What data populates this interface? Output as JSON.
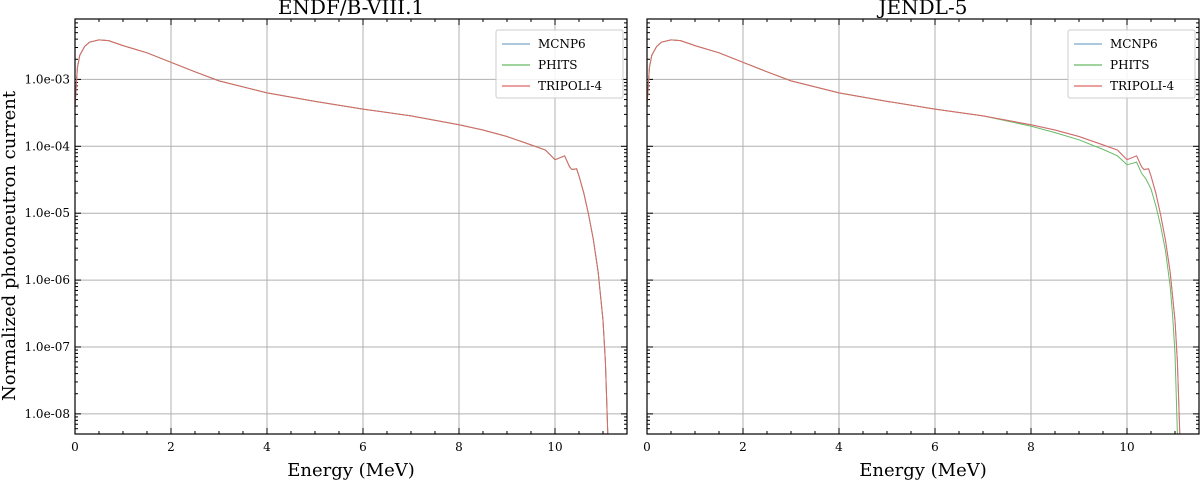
{
  "figure": {
    "ylabel": "Normalized photoneutron current"
  },
  "chart_data": [
    {
      "type": "line",
      "title": "ENDF/B-VIII.1",
      "xlabel": "Energy (MeV)",
      "ylabel": "Normalized photoneutron current",
      "xlim": [
        0,
        11.5
      ],
      "ylim": [
        5e-09,
        0.008
      ],
      "yscale": "log",
      "grid": true,
      "legend": "top-right",
      "x_ticks": [
        0,
        2,
        4,
        6,
        8,
        10
      ],
      "y_ticks": [
        1e-08,
        1e-07,
        1e-06,
        1e-05,
        0.0001,
        0.001
      ],
      "y_tick_labels": [
        "1.0e-08",
        "1.0e-07",
        "1.0e-06",
        "1.0e-05",
        "1.0e-04",
        "1.0e-03"
      ],
      "series": [
        {
          "name": "MCNP6",
          "color": "#7aa6c9",
          "x": [
            0.0,
            0.05,
            0.1,
            0.2,
            0.3,
            0.5,
            0.7,
            1.0,
            1.5,
            2.0,
            2.5,
            3.0,
            4.0,
            5.0,
            6.0,
            7.0,
            8.0,
            8.5,
            9.0,
            9.5,
            9.8,
            10.0,
            10.05,
            10.2,
            10.3,
            10.35,
            10.45,
            10.5,
            10.6,
            10.7,
            10.8,
            10.9,
            11.0,
            11.05,
            11.1
          ],
          "y": [
            0.0004,
            0.0015,
            0.0023,
            0.0031,
            0.0036,
            0.0039,
            0.0038,
            0.0032,
            0.0025,
            0.0018,
            0.0013,
            0.00095,
            0.00063,
            0.00047,
            0.00036,
            0.000285,
            0.00021,
            0.000175,
            0.00014,
            0.000105,
            8.8e-05,
            6.3e-05,
            6.5e-05,
            7.2e-05,
            5e-05,
            4.5e-05,
            4.6e-05,
            3.6e-05,
            2e-05,
            9.5e-06,
            4e-06,
            1.3e-06,
            2.5e-07,
            6e-08,
            5e-09
          ]
        },
        {
          "name": "PHITS",
          "color": "#66bb66",
          "x": [
            0.0,
            0.05,
            0.1,
            0.2,
            0.3,
            0.5,
            0.7,
            1.0,
            1.5,
            2.0,
            2.5,
            3.0,
            4.0,
            5.0,
            6.0,
            7.0,
            8.0,
            8.5,
            9.0,
            9.5,
            9.8,
            10.0,
            10.05,
            10.2,
            10.3,
            10.35,
            10.45,
            10.5,
            10.6,
            10.7,
            10.8,
            10.9,
            11.0,
            11.05,
            11.1
          ],
          "y": [
            0.0004,
            0.0015,
            0.0023,
            0.0031,
            0.0036,
            0.0039,
            0.0038,
            0.0032,
            0.0025,
            0.0018,
            0.0013,
            0.00095,
            0.00063,
            0.00047,
            0.00036,
            0.000285,
            0.00021,
            0.000175,
            0.00014,
            0.000105,
            8.8e-05,
            6.3e-05,
            6.5e-05,
            7.2e-05,
            5e-05,
            4.5e-05,
            4.6e-05,
            3.6e-05,
            2e-05,
            9.5e-06,
            4e-06,
            1.3e-06,
            2.5e-07,
            6e-08,
            5e-09
          ]
        },
        {
          "name": "TRIPOLI-4",
          "color": "#e06666",
          "x": [
            0.0,
            0.05,
            0.1,
            0.2,
            0.3,
            0.5,
            0.7,
            1.0,
            1.5,
            2.0,
            2.5,
            3.0,
            4.0,
            5.0,
            6.0,
            7.0,
            8.0,
            8.5,
            9.0,
            9.5,
            9.8,
            10.0,
            10.05,
            10.2,
            10.3,
            10.35,
            10.45,
            10.5,
            10.6,
            10.7,
            10.8,
            10.9,
            11.0,
            11.05,
            11.1
          ],
          "y": [
            0.0004,
            0.0015,
            0.0023,
            0.0031,
            0.0036,
            0.0039,
            0.0038,
            0.0032,
            0.0025,
            0.0018,
            0.0013,
            0.00095,
            0.00063,
            0.00047,
            0.00036,
            0.000285,
            0.00021,
            0.000175,
            0.00014,
            0.000105,
            8.8e-05,
            6.3e-05,
            6.5e-05,
            7.2e-05,
            5e-05,
            4.5e-05,
            4.6e-05,
            3.6e-05,
            2e-05,
            9.5e-06,
            4e-06,
            1.3e-06,
            2.5e-07,
            6e-08,
            5e-09
          ]
        }
      ]
    },
    {
      "type": "line",
      "title": "JENDL-5",
      "xlabel": "Energy (MeV)",
      "ylabel": "",
      "xlim": [
        0,
        11.5
      ],
      "ylim": [
        5e-09,
        0.008
      ],
      "yscale": "log",
      "grid": true,
      "legend": "top-right",
      "x_ticks": [
        0,
        2,
        4,
        6,
        8,
        10
      ],
      "y_ticks": [
        1e-08,
        1e-07,
        1e-06,
        1e-05,
        0.0001,
        0.001
      ],
      "y_tick_labels": [],
      "series": [
        {
          "name": "MCNP6",
          "color": "#7aa6c9",
          "x": [
            0.0,
            0.05,
            0.1,
            0.2,
            0.3,
            0.5,
            0.7,
            1.0,
            1.5,
            2.0,
            2.5,
            3.0,
            4.0,
            5.0,
            6.0,
            7.0,
            8.0,
            8.5,
            9.0,
            9.5,
            9.8,
            10.0,
            10.05,
            10.2,
            10.3,
            10.35,
            10.45,
            10.5,
            10.6,
            10.7,
            10.8,
            10.9,
            11.0,
            11.05,
            11.1
          ],
          "y": [
            0.0004,
            0.0015,
            0.0023,
            0.0031,
            0.0036,
            0.0039,
            0.0038,
            0.0032,
            0.0025,
            0.0018,
            0.0013,
            0.00095,
            0.00063,
            0.00047,
            0.00036,
            0.000285,
            0.00021,
            0.000175,
            0.00014,
            0.000105,
            8.8e-05,
            6.3e-05,
            6.5e-05,
            7.2e-05,
            5e-05,
            4.5e-05,
            4.6e-05,
            3.6e-05,
            2e-05,
            9.5e-06,
            4e-06,
            1.3e-06,
            2.5e-07,
            6e-08,
            5e-09
          ]
        },
        {
          "name": "PHITS",
          "color": "#66bb66",
          "x": [
            0.0,
            0.05,
            0.1,
            0.2,
            0.3,
            0.5,
            0.7,
            1.0,
            1.5,
            2.0,
            2.5,
            3.0,
            4.0,
            5.0,
            6.0,
            7.0,
            8.0,
            8.5,
            9.0,
            9.5,
            9.8,
            10.0,
            10.05,
            10.2,
            10.3,
            10.4,
            10.5,
            10.6,
            10.7,
            10.8,
            10.9,
            10.95,
            11.0,
            11.05
          ],
          "y": [
            0.0004,
            0.0015,
            0.0023,
            0.0031,
            0.0036,
            0.0039,
            0.0038,
            0.0032,
            0.0025,
            0.0018,
            0.0013,
            0.00095,
            0.00063,
            0.00047,
            0.00036,
            0.000285,
            0.0002,
            0.00016,
            0.000125,
            9e-05,
            7.2e-05,
            5.3e-05,
            5.4e-05,
            5.8e-05,
            4e-05,
            3.2e-05,
            2.3e-05,
            1.3e-05,
            6.5e-06,
            2.8e-06,
            8e-07,
            3e-07,
            8e-08,
            5e-09
          ]
        },
        {
          "name": "TRIPOLI-4",
          "color": "#e06666",
          "x": [
            0.0,
            0.05,
            0.1,
            0.2,
            0.3,
            0.5,
            0.7,
            1.0,
            1.5,
            2.0,
            2.5,
            3.0,
            4.0,
            5.0,
            6.0,
            7.0,
            8.0,
            8.5,
            9.0,
            9.5,
            9.8,
            10.0,
            10.05,
            10.2,
            10.3,
            10.35,
            10.45,
            10.5,
            10.6,
            10.7,
            10.8,
            10.9,
            11.0,
            11.05,
            11.1
          ],
          "y": [
            0.0004,
            0.0015,
            0.0023,
            0.0031,
            0.0036,
            0.0039,
            0.0038,
            0.0032,
            0.0025,
            0.0018,
            0.0013,
            0.00095,
            0.00063,
            0.00047,
            0.00036,
            0.000285,
            0.00021,
            0.000175,
            0.00014,
            0.000105,
            8.8e-05,
            6.3e-05,
            6.5e-05,
            7.2e-05,
            5e-05,
            4.5e-05,
            4.6e-05,
            3.6e-05,
            2e-05,
            9.5e-06,
            4e-06,
            1.3e-06,
            2.5e-07,
            6e-08,
            5e-09
          ]
        }
      ]
    }
  ]
}
